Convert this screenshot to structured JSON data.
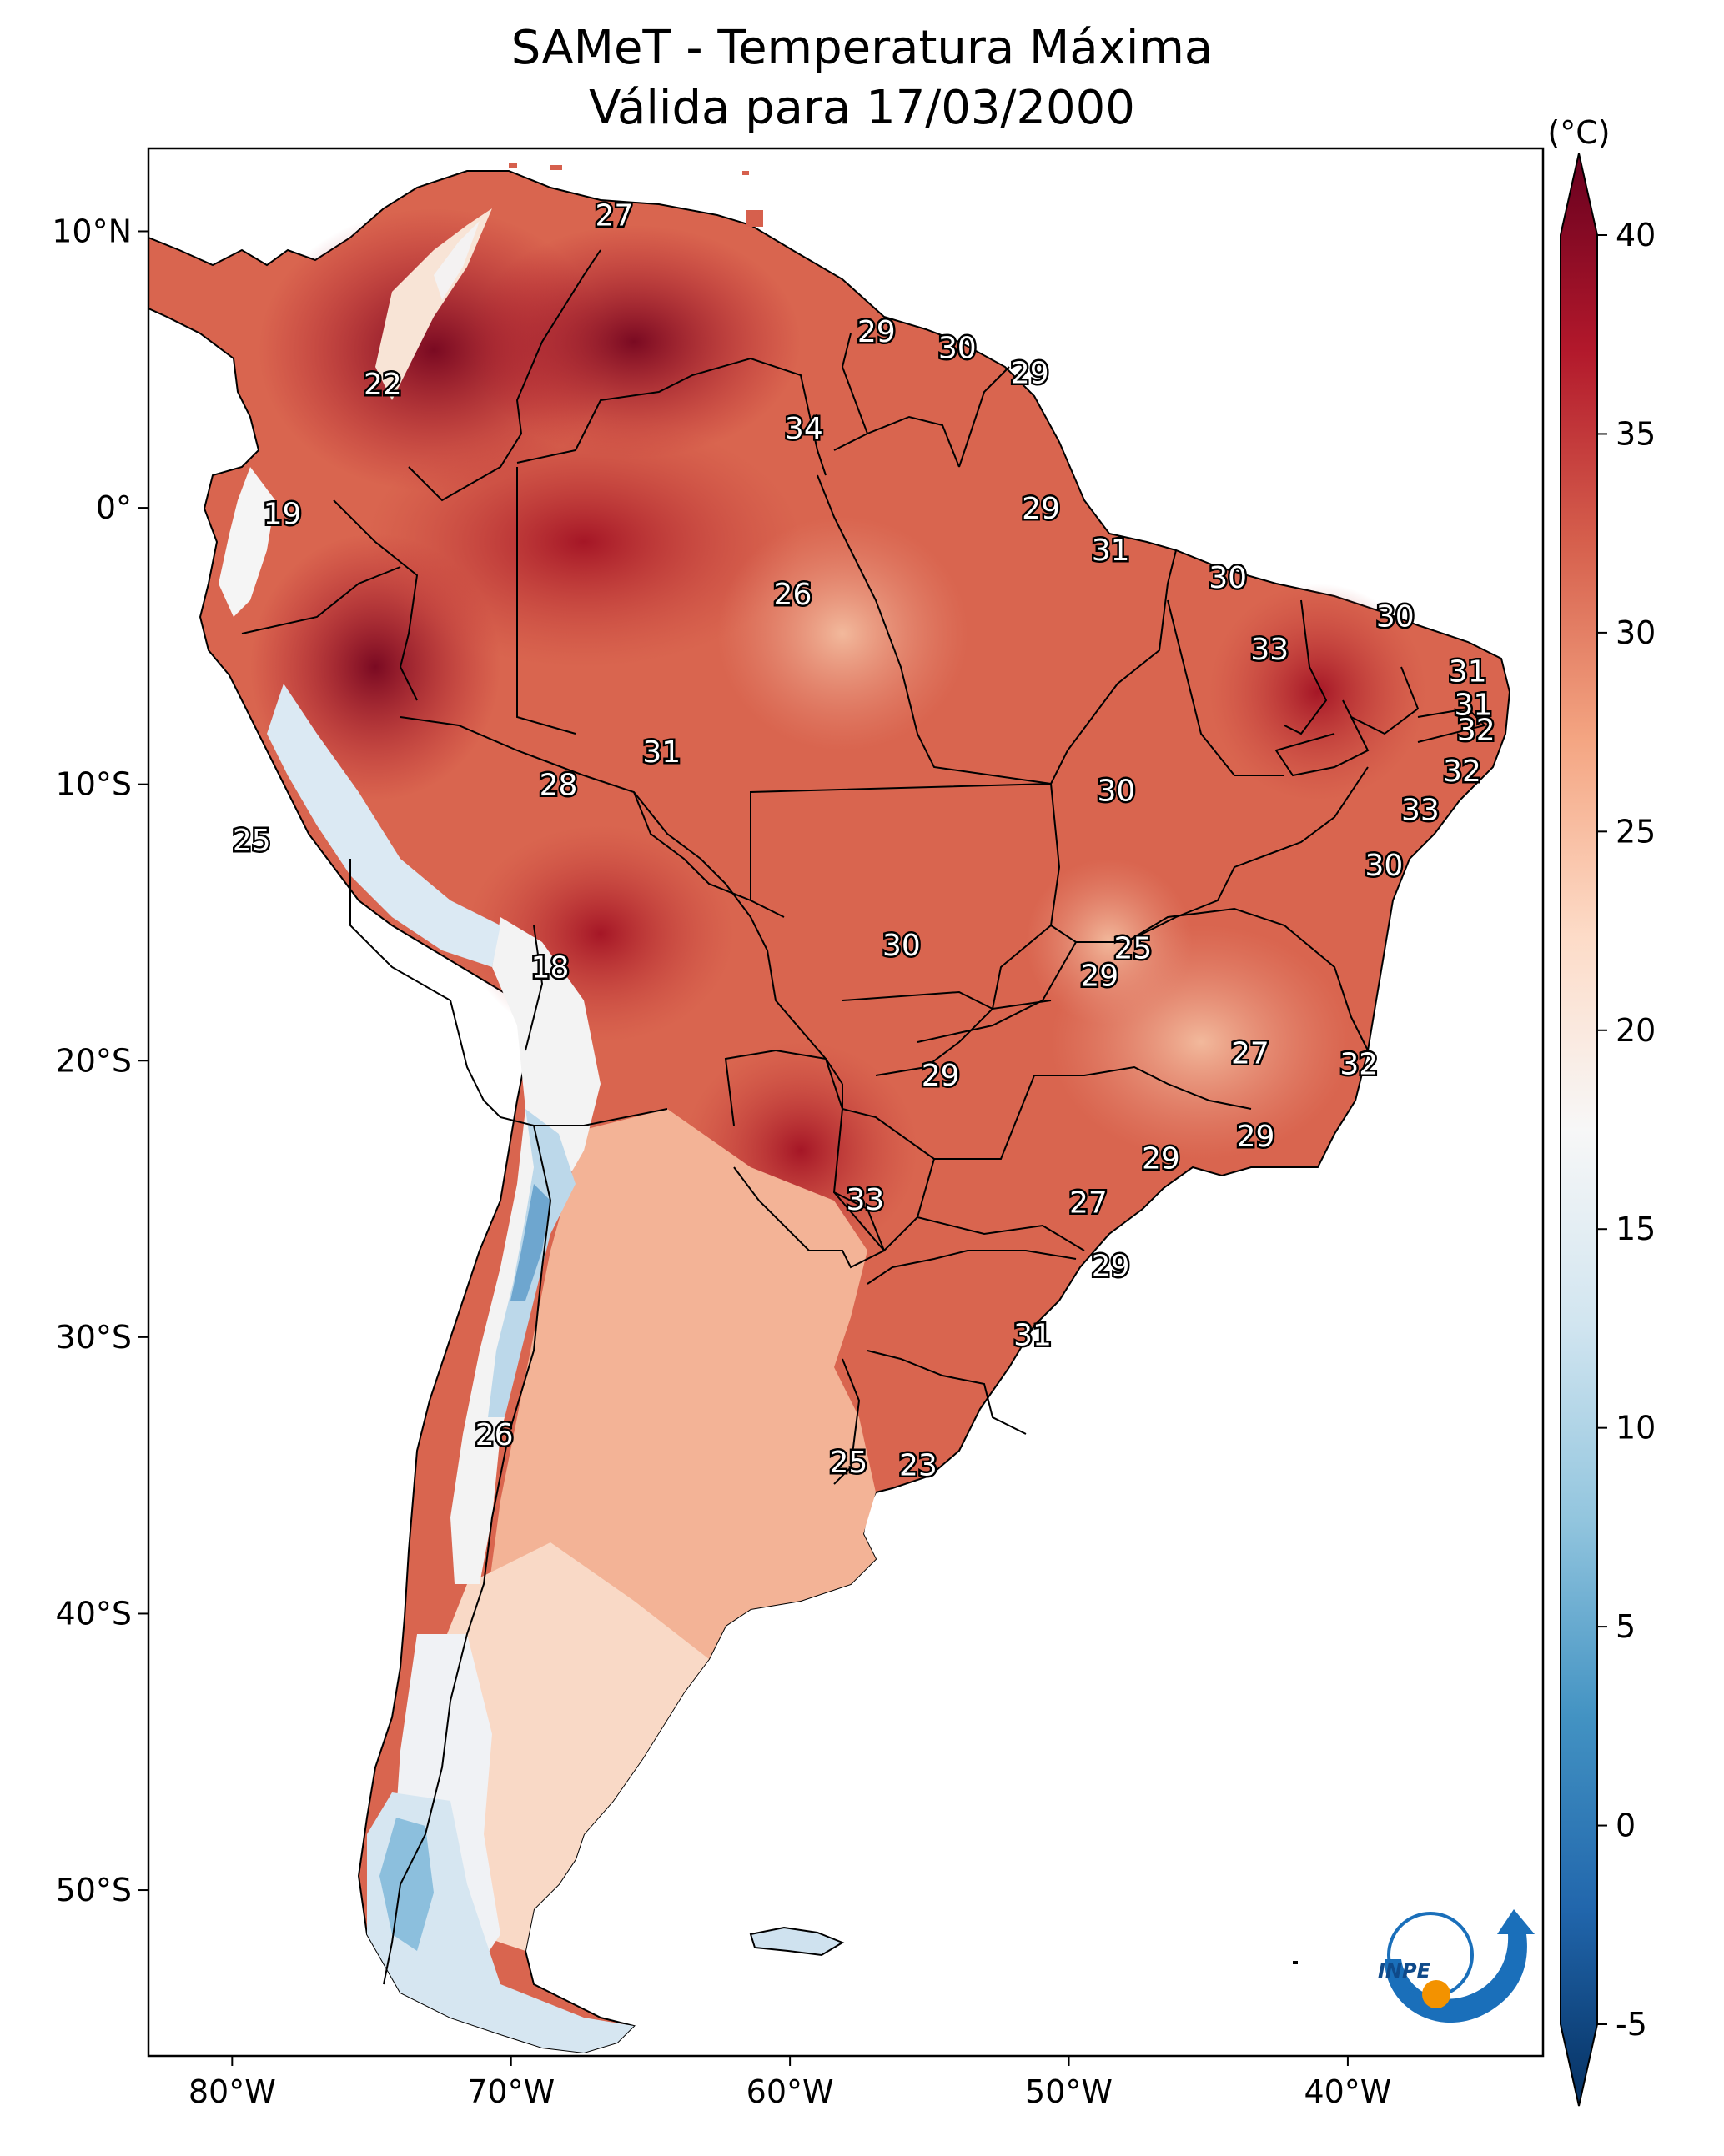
{
  "title": {
    "line1": "SAMeT - Temperatura Máxima",
    "line2": "Válida para 17/03/2000"
  },
  "axes": {
    "lat_ticks": [
      {
        "value": 10,
        "label": "10°N"
      },
      {
        "value": 0,
        "label": "0°"
      },
      {
        "value": -10,
        "label": "10°S"
      },
      {
        "value": -20,
        "label": "20°S"
      },
      {
        "value": -30,
        "label": "30°S"
      },
      {
        "value": -40,
        "label": "40°S"
      },
      {
        "value": -50,
        "label": "50°S"
      }
    ],
    "lon_ticks": [
      {
        "value": -80,
        "label": "80°W"
      },
      {
        "value": -70,
        "label": "70°W"
      },
      {
        "value": -60,
        "label": "60°W"
      },
      {
        "value": -50,
        "label": "50°W"
      },
      {
        "value": -40,
        "label": "40°W"
      }
    ],
    "lon_range": [
      -83,
      -33
    ],
    "lat_range": [
      -56,
      13
    ]
  },
  "colorbar": {
    "unit": "(°C)",
    "min": -5,
    "max": 40,
    "ticks": [
      {
        "value": 40,
        "label": "40"
      },
      {
        "value": 35,
        "label": "35"
      },
      {
        "value": 30,
        "label": "30"
      },
      {
        "value": 25,
        "label": "25"
      },
      {
        "value": 20,
        "label": "20"
      },
      {
        "value": 15,
        "label": "15"
      },
      {
        "value": 10,
        "label": "10"
      },
      {
        "value": 5,
        "label": "5"
      },
      {
        "value": 0,
        "label": "0"
      },
      {
        "value": -5,
        "label": "-5"
      }
    ],
    "colors": [
      "#053061",
      "#2166ac",
      "#4393c3",
      "#92c5de",
      "#d1e5f0",
      "#f7f7f7",
      "#fddbc7",
      "#f4a582",
      "#d6604d",
      "#b2182b",
      "#67001f"
    ]
  },
  "contour_labels": [
    {
      "lon": -66.3,
      "lat": 10.6,
      "text": "27"
    },
    {
      "lon": -56.9,
      "lat": 6.4,
      "text": "29"
    },
    {
      "lon": -54.0,
      "lat": 5.8,
      "text": "30"
    },
    {
      "lon": -51.4,
      "lat": 4.9,
      "text": "29"
    },
    {
      "lon": -59.5,
      "lat": 2.9,
      "text": "34"
    },
    {
      "lon": -74.6,
      "lat": 4.5,
      "text": "22"
    },
    {
      "lon": -78.2,
      "lat": -0.2,
      "text": "19"
    },
    {
      "lon": -51.0,
      "lat": 0.0,
      "text": "29"
    },
    {
      "lon": -48.5,
      "lat": -1.5,
      "text": "31"
    },
    {
      "lon": -44.3,
      "lat": -2.5,
      "text": "30"
    },
    {
      "lon": -59.9,
      "lat": -3.1,
      "text": "26"
    },
    {
      "lon": -38.3,
      "lat": -3.9,
      "text": "30"
    },
    {
      "lon": -42.8,
      "lat": -5.1,
      "text": "33"
    },
    {
      "lon": -35.7,
      "lat": -5.9,
      "text": "31"
    },
    {
      "lon": -35.5,
      "lat": -7.1,
      "text": "31"
    },
    {
      "lon": -35.4,
      "lat": -8.0,
      "text": "32"
    },
    {
      "lon": -64.6,
      "lat": -8.8,
      "text": "31"
    },
    {
      "lon": -35.9,
      "lat": -9.5,
      "text": "32"
    },
    {
      "lon": -68.3,
      "lat": -10.0,
      "text": "28"
    },
    {
      "lon": -48.3,
      "lat": -10.2,
      "text": "30"
    },
    {
      "lon": -37.4,
      "lat": -10.9,
      "text": "33"
    },
    {
      "lon": -79.3,
      "lat": -12.0,
      "text": "25"
    },
    {
      "lon": -38.7,
      "lat": -12.9,
      "text": "30"
    },
    {
      "lon": -47.7,
      "lat": -15.9,
      "text": "25"
    },
    {
      "lon": -56.0,
      "lat": -15.8,
      "text": "30"
    },
    {
      "lon": -48.9,
      "lat": -16.9,
      "text": "29"
    },
    {
      "lon": -68.6,
      "lat": -16.6,
      "text": "18"
    },
    {
      "lon": -43.5,
      "lat": -19.7,
      "text": "27"
    },
    {
      "lon": -39.6,
      "lat": -20.1,
      "text": "32"
    },
    {
      "lon": -54.6,
      "lat": -20.5,
      "text": "29"
    },
    {
      "lon": -43.3,
      "lat": -22.7,
      "text": "29"
    },
    {
      "lon": -46.7,
      "lat": -23.5,
      "text": "29"
    },
    {
      "lon": -57.3,
      "lat": -25.0,
      "text": "33"
    },
    {
      "lon": -49.3,
      "lat": -25.1,
      "text": "27"
    },
    {
      "lon": -48.5,
      "lat": -27.4,
      "text": "29"
    },
    {
      "lon": -51.3,
      "lat": -29.9,
      "text": "31"
    },
    {
      "lon": -70.6,
      "lat": -33.5,
      "text": "26"
    },
    {
      "lon": -57.9,
      "lat": -34.5,
      "text": "25"
    },
    {
      "lon": -55.4,
      "lat": -34.6,
      "text": "23"
    }
  ],
  "logo": {
    "text": "INPE",
    "colors": {
      "blue": "#1a6fba",
      "orange": "#f39200"
    }
  }
}
